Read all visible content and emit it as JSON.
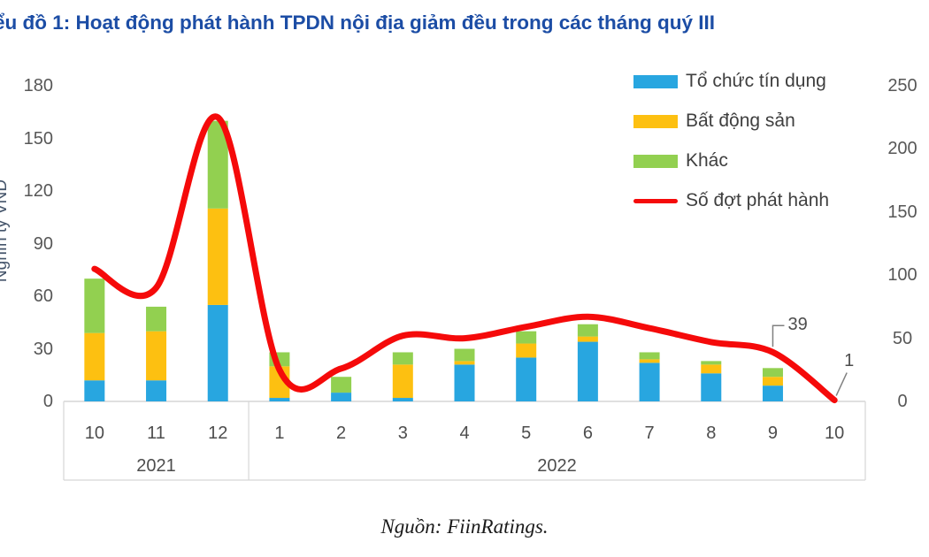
{
  "title": "ểu đồ 1: Hoạt động phát hành TPDN nội địa giảm đều trong các tháng quý III",
  "source": "Nguồn: FiinRatings.",
  "colors": {
    "title_blue": "#1C4DA5",
    "credit_blue": "#28A6E0",
    "realestate_yellow": "#FDC011",
    "other_green": "#92D050",
    "line_red": "#F50A0A",
    "axis_text_gray": "#575757",
    "axis_line_gray": "#D6D6D6",
    "leader_gray": "#808080"
  },
  "chart_data": {
    "type": "combo_stacked_bar_line",
    "title": "ểu đồ 1: Hoạt động phát hành TPDN nội địa giảm đều trong các tháng quý III",
    "categories": [
      "10",
      "11",
      "12",
      "1",
      "2",
      "3",
      "4",
      "5",
      "6",
      "7",
      "8",
      "9",
      "10"
    ],
    "year_groups": [
      {
        "label": "2021",
        "from": 0,
        "to": 2
      },
      {
        "label": "2022",
        "from": 3,
        "to": 12
      }
    ],
    "series": [
      {
        "name": "Tổ chức tín dụng",
        "color": "#28A6E0",
        "axis": "left",
        "values": [
          12,
          12,
          55,
          2,
          5,
          2,
          21,
          25,
          34,
          22,
          16,
          9,
          0
        ]
      },
      {
        "name": "Bất động sản",
        "color": "#FDC011",
        "axis": "left",
        "values": [
          27,
          28,
          55,
          18,
          0,
          19,
          2,
          8,
          3,
          2,
          5,
          5,
          0
        ]
      },
      {
        "name": "Khác",
        "color": "#92D050",
        "axis": "left",
        "values": [
          31,
          14,
          50,
          8,
          9,
          7,
          7,
          7,
          7,
          4,
          2,
          5,
          0
        ]
      }
    ],
    "line": {
      "name": "Số đợt phát hành",
      "color": "#F50A0A",
      "axis": "right",
      "smooth": true,
      "values": [
        105,
        90,
        225,
        25,
        26,
        52,
        50,
        59,
        67,
        58,
        47,
        39,
        1
      ],
      "point_labels": [
        {
          "index": 11,
          "text": "39"
        },
        {
          "index": 12,
          "text": "1"
        }
      ]
    },
    "left_axis": {
      "title": "Nghìn tỷ VND",
      "min": 0,
      "max": 180,
      "step": 30
    },
    "right_axis": {
      "min": 0,
      "max": 250,
      "step": 50
    },
    "gridlines": false,
    "legend_position": "top-right"
  }
}
